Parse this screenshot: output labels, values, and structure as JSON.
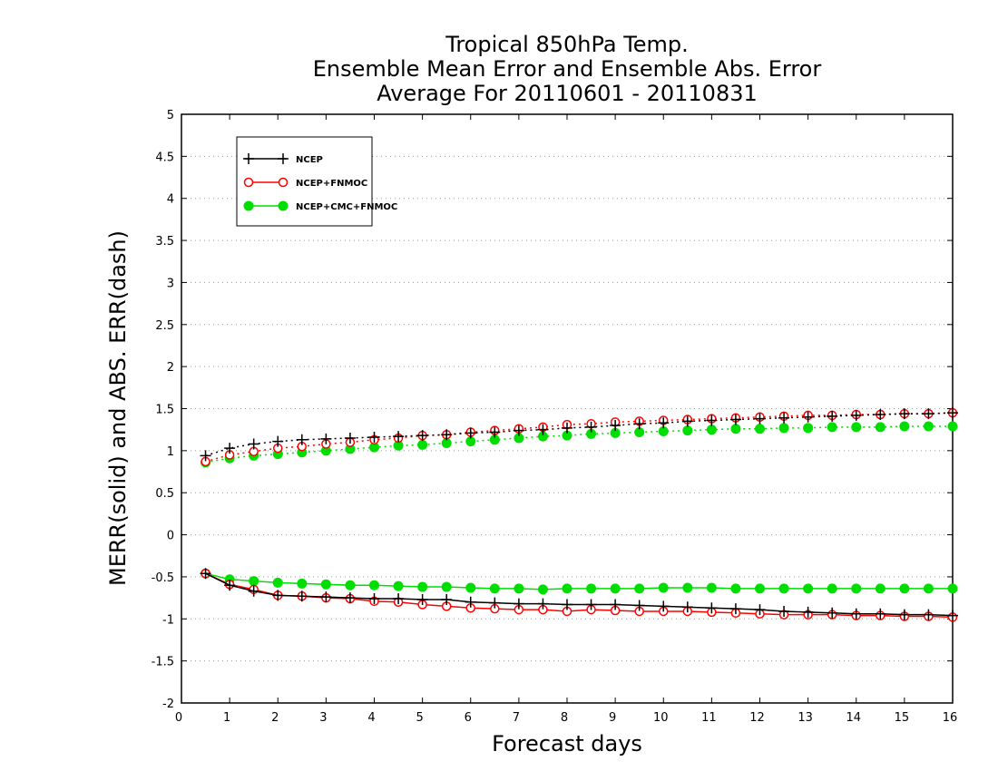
{
  "title_lines": [
    "Tropical 850hPa Temp.",
    "Ensemble Mean Error and Ensemble Abs. Error",
    "Average For 20110601 - 20110831"
  ],
  "chart_data": {
    "type": "line",
    "title": "Tropical 850hPa Temp. / Ensemble Mean Error and Ensemble Abs. Error / Average For 20110601 - 20110831",
    "xlabel": "Forecast days",
    "ylabel": "MERR(solid) and ABS. ERR(dash)",
    "xlim": [
      0,
      16
    ],
    "ylim": [
      -2,
      5
    ],
    "x_ticks": [
      "0",
      "1",
      "2",
      "3",
      "4",
      "5",
      "6",
      "7",
      "8",
      "9",
      "10",
      "11",
      "12",
      "13",
      "14",
      "15",
      "16"
    ],
    "y_ticks": [
      "-2",
      "-1.5",
      "-1",
      "-0.5",
      "0",
      "0.5",
      "1",
      "1.5",
      "2",
      "2.5",
      "3",
      "3.5",
      "4",
      "4.5",
      "5"
    ],
    "grid": "horizontal dotted",
    "legend_position": "top-left",
    "x": [
      0.5,
      1,
      1.5,
      2,
      2.5,
      3,
      3.5,
      4,
      4.5,
      5,
      5.5,
      6,
      6.5,
      7,
      7.5,
      8,
      8.5,
      9,
      9.5,
      10,
      10.5,
      11,
      11.5,
      12,
      12.5,
      13,
      13.5,
      14,
      14.5,
      15,
      15.5,
      16
    ],
    "series": [
      {
        "name": "NCEP",
        "color": "#000000",
        "marker": "plus",
        "merr": [
          -0.46,
          -0.6,
          -0.67,
          -0.72,
          -0.73,
          -0.74,
          -0.75,
          -0.76,
          -0.76,
          -0.77,
          -0.77,
          -0.8,
          -0.81,
          -0.82,
          -0.82,
          -0.83,
          -0.83,
          -0.83,
          -0.84,
          -0.85,
          -0.86,
          -0.87,
          -0.88,
          -0.89,
          -0.91,
          -0.92,
          -0.93,
          -0.94,
          -0.94,
          -0.95,
          -0.95,
          -0.96
        ],
        "abs_err": [
          0.94,
          1.03,
          1.08,
          1.11,
          1.13,
          1.14,
          1.15,
          1.16,
          1.17,
          1.18,
          1.19,
          1.21,
          1.22,
          1.24,
          1.25,
          1.27,
          1.28,
          1.3,
          1.32,
          1.33,
          1.35,
          1.36,
          1.37,
          1.38,
          1.39,
          1.4,
          1.41,
          1.42,
          1.43,
          1.44,
          1.44,
          1.45
        ]
      },
      {
        "name": "NCEP+FNMOC",
        "color": "#ff0000",
        "marker": "open-circle",
        "merr": [
          -0.46,
          -0.59,
          -0.65,
          -0.72,
          -0.73,
          -0.75,
          -0.76,
          -0.79,
          -0.8,
          -0.83,
          -0.85,
          -0.87,
          -0.88,
          -0.89,
          -0.89,
          -0.91,
          -0.89,
          -0.9,
          -0.91,
          -0.91,
          -0.91,
          -0.92,
          -0.93,
          -0.94,
          -0.95,
          -0.95,
          -0.95,
          -0.96,
          -0.96,
          -0.97,
          -0.97,
          -0.98
        ],
        "abs_err": [
          0.87,
          0.95,
          0.99,
          1.03,
          1.05,
          1.08,
          1.1,
          1.13,
          1.15,
          1.18,
          1.19,
          1.22,
          1.24,
          1.26,
          1.28,
          1.31,
          1.32,
          1.34,
          1.35,
          1.36,
          1.37,
          1.38,
          1.39,
          1.4,
          1.41,
          1.42,
          1.42,
          1.43,
          1.43,
          1.44,
          1.44,
          1.45
        ]
      },
      {
        "name": "NCEP+CMC+FNMOC",
        "color": "#00dd00",
        "marker": "filled-circle",
        "merr": [
          -0.46,
          -0.53,
          -0.55,
          -0.57,
          -0.58,
          -0.59,
          -0.6,
          -0.6,
          -0.61,
          -0.62,
          -0.62,
          -0.63,
          -0.64,
          -0.64,
          -0.65,
          -0.64,
          -0.64,
          -0.64,
          -0.64,
          -0.63,
          -0.63,
          -0.63,
          -0.64,
          -0.64,
          -0.64,
          -0.64,
          -0.64,
          -0.64,
          -0.64,
          -0.64,
          -0.64,
          -0.64
        ],
        "abs_err": [
          0.86,
          0.91,
          0.94,
          0.96,
          0.98,
          1.0,
          1.02,
          1.04,
          1.06,
          1.07,
          1.09,
          1.11,
          1.13,
          1.15,
          1.17,
          1.18,
          1.2,
          1.21,
          1.22,
          1.23,
          1.24,
          1.25,
          1.26,
          1.26,
          1.27,
          1.27,
          1.28,
          1.28,
          1.28,
          1.29,
          1.29,
          1.29
        ]
      }
    ]
  }
}
